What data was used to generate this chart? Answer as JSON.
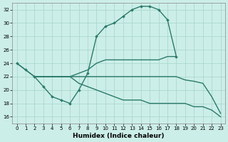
{
  "xlabel": "Humidex (Indice chaleur)",
  "background_color": "#cceee8",
  "line_color": "#2a7a6a",
  "grid_color": "#aad8d0",
  "xlim": [
    -0.5,
    23.5
  ],
  "ylim": [
    15.0,
    33.0
  ],
  "yticks": [
    16,
    18,
    20,
    22,
    24,
    26,
    28,
    30,
    32
  ],
  "xticks": [
    0,
    1,
    2,
    3,
    4,
    5,
    6,
    7,
    8,
    9,
    10,
    11,
    12,
    13,
    14,
    15,
    16,
    17,
    18,
    19,
    20,
    21,
    22,
    23
  ],
  "series1_x": [
    0,
    1,
    2,
    3,
    4,
    5,
    6,
    7,
    8,
    9,
    10,
    11,
    12,
    13,
    14,
    15,
    16,
    17,
    18
  ],
  "series1_y": [
    24,
    23,
    22,
    20.5,
    19,
    18.5,
    18,
    20,
    22.5,
    28,
    29.5,
    30,
    31,
    32,
    32.5,
    32.5,
    32,
    30.5,
    25
  ],
  "series2_x": [
    0,
    1,
    2,
    3,
    4,
    5,
    6,
    7,
    8,
    9,
    10,
    11,
    12,
    13,
    14,
    15,
    16,
    17,
    18
  ],
  "series2_y": [
    24,
    23,
    22,
    22,
    22,
    22,
    22,
    22.5,
    23,
    24,
    24.5,
    24.5,
    24.5,
    24.5,
    24.5,
    24.5,
    24.5,
    25,
    25
  ],
  "series3_x": [
    2,
    3,
    4,
    5,
    6,
    7,
    8,
    9,
    10,
    11,
    12,
    13,
    14,
    15,
    16,
    17,
    18,
    19,
    20,
    21,
    22,
    23
  ],
  "series3_y": [
    22,
    22,
    22,
    22,
    22,
    22,
    22,
    22,
    22,
    22,
    22,
    22,
    22,
    22,
    22,
    22,
    22,
    21.5,
    21.3,
    21.0,
    19.0,
    16.5
  ],
  "series4_x": [
    2,
    3,
    4,
    5,
    6,
    7,
    8,
    9,
    10,
    11,
    12,
    13,
    14,
    15,
    16,
    17,
    18,
    19,
    20,
    21,
    22,
    23
  ],
  "series4_y": [
    22,
    22,
    22,
    22,
    22,
    21,
    20.5,
    20,
    19.5,
    19,
    18.5,
    18.5,
    18.5,
    18,
    18,
    18,
    18,
    18,
    17.5,
    17.5,
    17.0,
    16
  ]
}
